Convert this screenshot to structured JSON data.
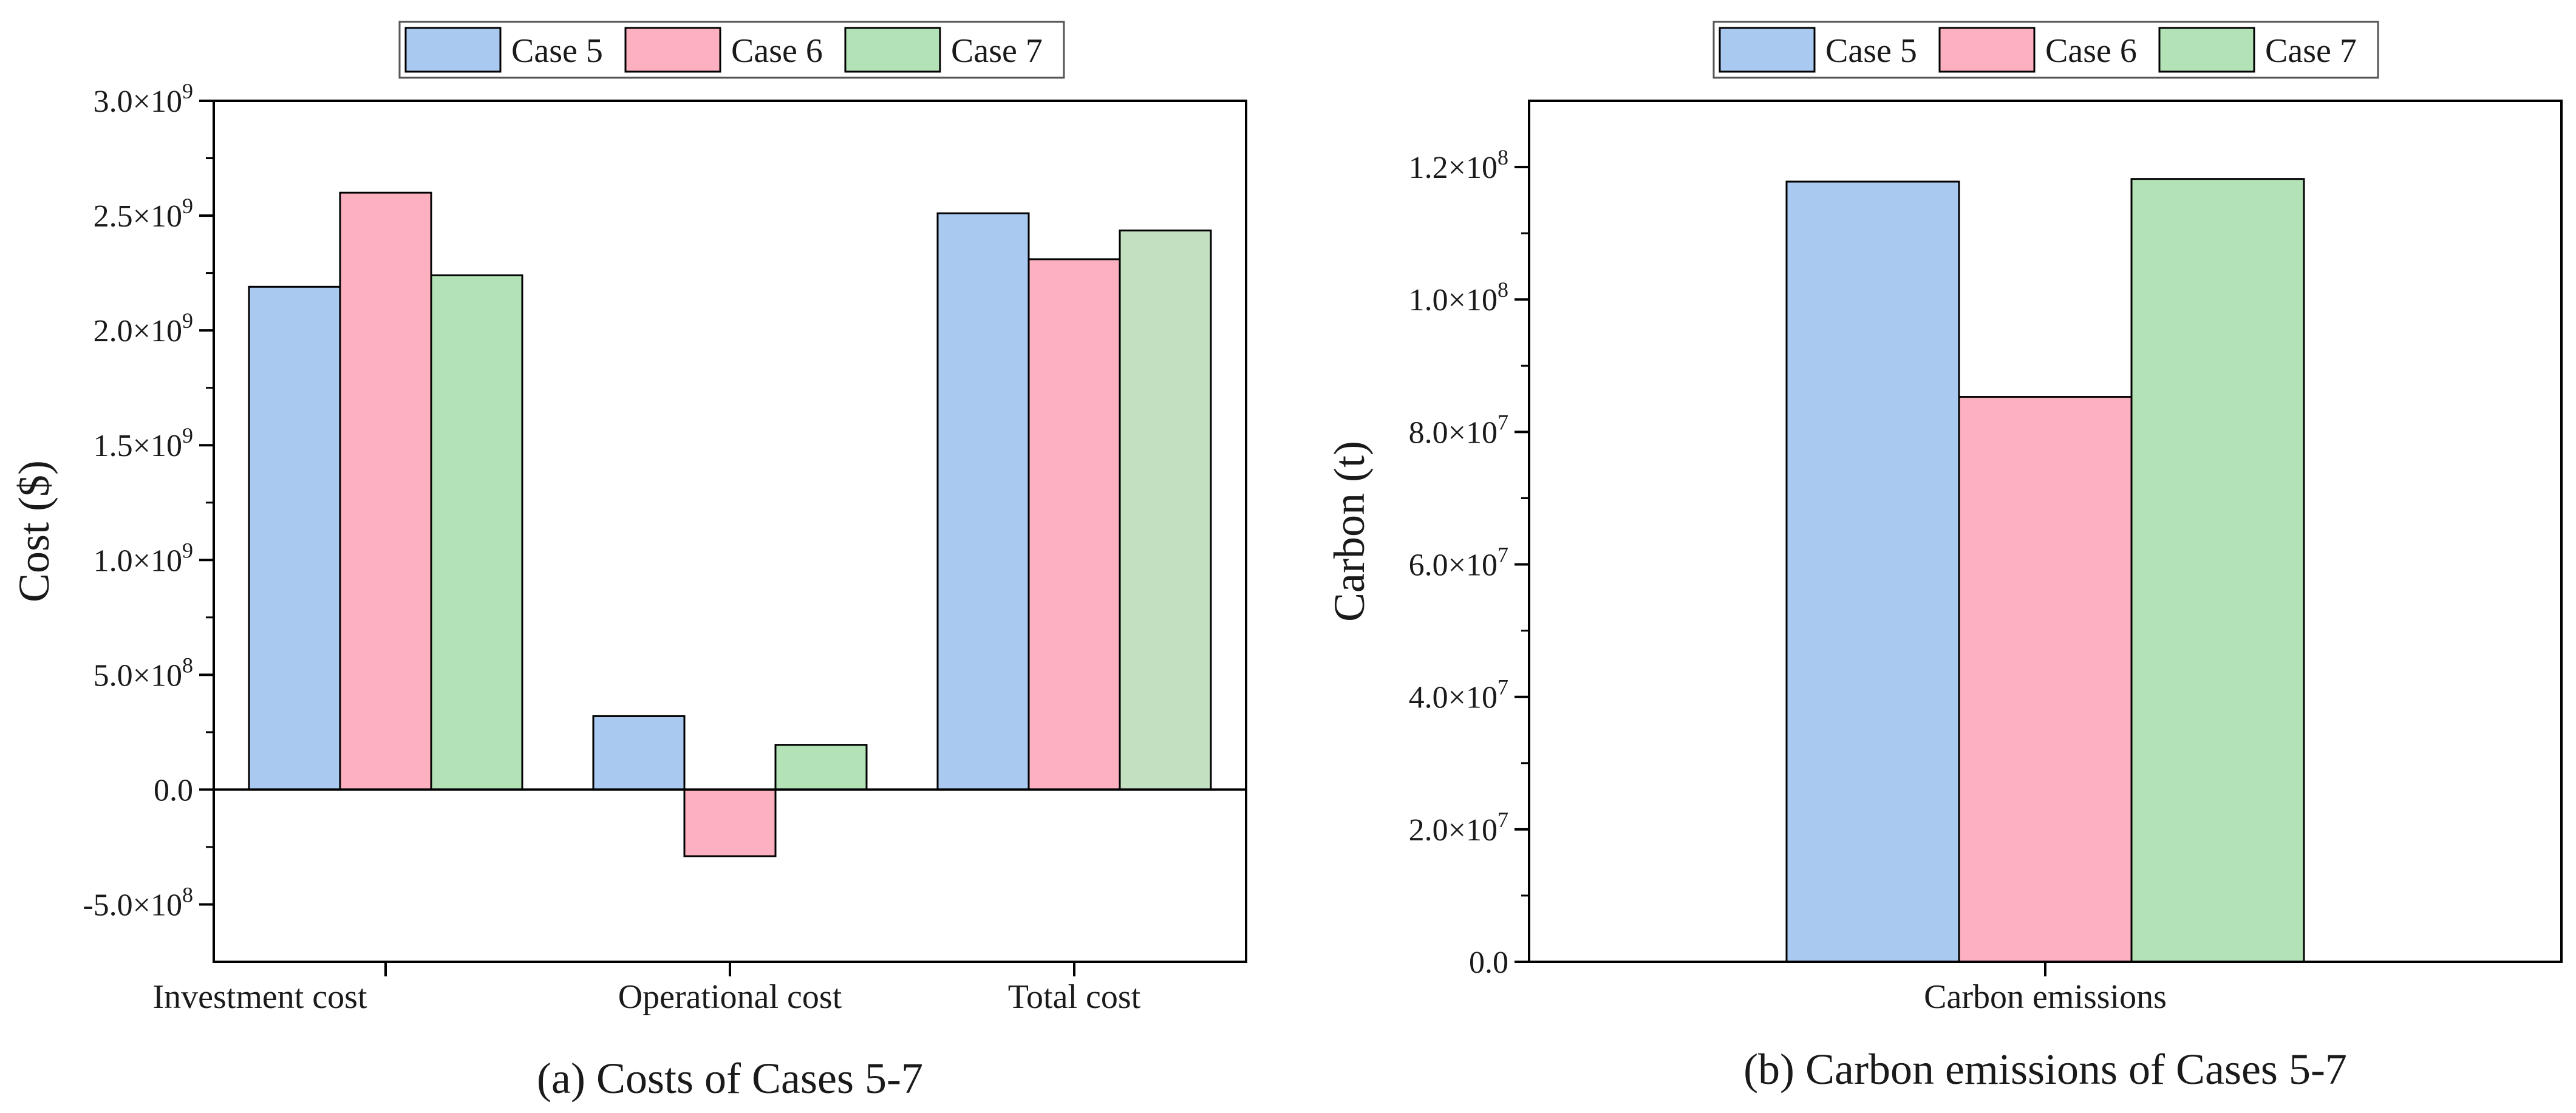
{
  "colors": {
    "case5": "#a9c9f0",
    "case6": "#fdb0c0",
    "case7_costs": "#b3e2b6",
    "case7_costs_total": "#c3e1c1",
    "case7_carbon": "#b3e2b6"
  },
  "chart_data": [
    {
      "type": "bar",
      "title": "",
      "caption": "(a) Costs of Cases 5-7",
      "xlabel": "",
      "ylabel": "Cost ($)",
      "ylim": [
        -750000000,
        3000000000
      ],
      "yticks": [
        {
          "value": -500000000,
          "label": "-5.0×10^8"
        },
        {
          "value": 0,
          "label": "0.0"
        },
        {
          "value": 500000000,
          "label": "5.0×10^8"
        },
        {
          "value": 1000000000,
          "label": "1.0×10^9"
        },
        {
          "value": 1500000000,
          "label": "1.5×10^9"
        },
        {
          "value": 2000000000,
          "label": "2.0×10^9"
        },
        {
          "value": 2500000000,
          "label": "2.5×10^9"
        },
        {
          "value": 3000000000,
          "label": "3.0×10^9"
        }
      ],
      "categories": [
        "Investment cost",
        "Operational cost",
        "Total cost"
      ],
      "series": [
        {
          "name": "Case 5",
          "values": [
            2190000000,
            320000000,
            2510000000
          ]
        },
        {
          "name": "Case 6",
          "values": [
            2600000000,
            -290000000,
            2310000000
          ]
        },
        {
          "name": "Case 7",
          "values": [
            2240000000,
            195000000,
            2435000000
          ]
        }
      ],
      "legend": "top-center",
      "grid": false
    },
    {
      "type": "bar",
      "title": "",
      "caption": "(b) Carbon emissions of Cases 5-7",
      "xlabel": "",
      "ylabel": "Carbon (t)",
      "ylim": [
        0,
        130000000
      ],
      "yticks": [
        {
          "value": 0,
          "label": "0.0"
        },
        {
          "value": 20000000,
          "label": "2.0×10^7"
        },
        {
          "value": 40000000,
          "label": "4.0×10^7"
        },
        {
          "value": 60000000,
          "label": "6.0×10^7"
        },
        {
          "value": 80000000,
          "label": "8.0×10^7"
        },
        {
          "value": 100000000,
          "label": "1.0×10^8"
        },
        {
          "value": 120000000,
          "label": "1.2×10^8"
        }
      ],
      "categories": [
        "Carbon emissions"
      ],
      "series": [
        {
          "name": "Case 5",
          "values": [
            117800000
          ]
        },
        {
          "name": "Case 6",
          "values": [
            85300000
          ]
        },
        {
          "name": "Case 7",
          "values": [
            118200000
          ]
        }
      ],
      "legend": "top-center",
      "grid": false
    }
  ]
}
